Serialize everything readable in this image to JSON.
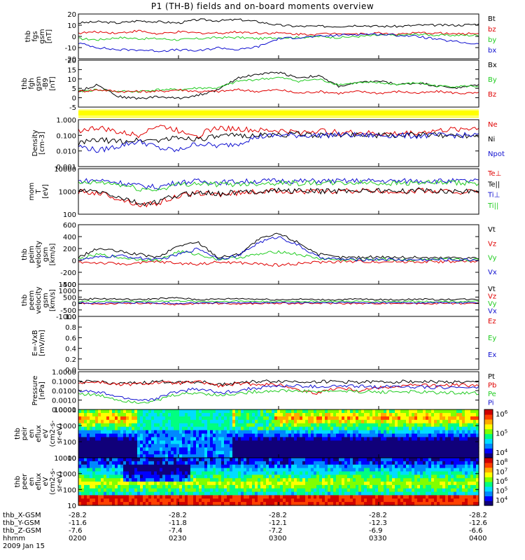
{
  "title": "P1 (TH-B) fields and on-board moments overview",
  "colors": {
    "black": "#000000",
    "red": "#e00000",
    "green": "#22cc22",
    "blue": "#1010d0",
    "yellow": "#ffff00"
  },
  "time_ticks": [
    "0200",
    "0230",
    "0300",
    "0330",
    "0400"
  ],
  "ephemeris": {
    "labels": [
      "thb_X-GSM",
      "thb_Y-GSM",
      "thb_Z-GSM",
      "hhmm",
      "2009 Jan 15"
    ],
    "rows": [
      [
        "-28.2",
        "-28.2",
        "-28.2",
        "-28.2",
        "-28.2"
      ],
      [
        "-11.6",
        "-11.8",
        "-12.1",
        "-12.3",
        "-12.6"
      ],
      [
        "-7.6",
        "-7.4",
        "-7.2",
        "-6.9",
        "-6.6"
      ],
      [
        "0200",
        "0230",
        "0300",
        "0330",
        "0400"
      ]
    ]
  },
  "colorbar_labels": {
    "ion": [
      "10^6",
      "10^5",
      "10^4"
    ],
    "elec": [
      "10^8",
      "10^7",
      "10^6",
      "10^5",
      "10^4"
    ]
  },
  "chart_data": [
    {
      "id": "fgs",
      "type": "line",
      "ylabel": [
        "thb",
        "fgs",
        "gsm",
        "[nT]"
      ],
      "yticks": [
        "20",
        "10",
        "0",
        "-10",
        "-20"
      ],
      "ylim": [
        -20,
        20
      ],
      "legend": [
        {
          "name": "Bt",
          "color": "black"
        },
        {
          "name": "bz",
          "color": "red"
        },
        {
          "name": "by",
          "color": "green"
        },
        {
          "name": "bx",
          "color": "blue"
        }
      ],
      "series": [
        {
          "name": "Bt",
          "color": "black",
          "values": [
            12,
            13,
            12,
            14,
            13,
            12,
            15,
            14,
            15,
            13,
            10,
            9,
            9,
            9,
            10,
            9,
            9,
            10,
            10,
            10,
            11
          ]
        },
        {
          "name": "bz",
          "color": "red",
          "values": [
            3,
            4,
            3,
            5,
            2,
            4,
            3,
            3,
            4,
            3,
            3,
            2,
            2,
            3,
            2,
            3,
            2,
            3,
            3,
            2,
            3
          ]
        },
        {
          "name": "by",
          "color": "green",
          "values": [
            -2,
            -3,
            -1,
            -2,
            -2,
            -3,
            -2,
            -1,
            -1,
            -2,
            -1,
            -1,
            0,
            -1,
            0,
            1,
            1,
            2,
            1,
            1,
            1
          ]
        },
        {
          "name": "bx",
          "color": "blue",
          "values": [
            -6,
            -10,
            -12,
            -12,
            -13,
            -12,
            -13,
            -10,
            -12,
            -9,
            -2,
            -1,
            0,
            1,
            2,
            2,
            1,
            0,
            -3,
            -5,
            -7
          ]
        }
      ]
    },
    {
      "id": "fgh",
      "type": "line",
      "ylabel": [
        "thb",
        "fgh",
        "gsm",
        "-B9",
        "[nT]"
      ],
      "yticks": [
        "20",
        "15",
        "10",
        "5",
        "0",
        "-5"
      ],
      "ylim": [
        -7,
        20
      ],
      "legend": [
        {
          "name": "Bx",
          "color": "black"
        },
        {
          "name": "By",
          "color": "green"
        },
        {
          "name": "Bz",
          "color": "red"
        }
      ],
      "series": [
        {
          "name": "Bx",
          "color": "black",
          "values": [
            2,
            6,
            -1,
            -2,
            -1,
            -2,
            0,
            3,
            10,
            12,
            13,
            10,
            11,
            5,
            7,
            8,
            6,
            7,
            5,
            4,
            6
          ]
        },
        {
          "name": "By",
          "color": "green",
          "values": [
            2,
            3,
            2,
            2,
            3,
            3,
            4,
            4,
            8,
            9,
            10,
            8,
            9,
            6,
            7,
            7,
            6,
            7,
            5,
            5,
            5
          ]
        },
        {
          "name": "Bz",
          "color": "red",
          "values": [
            2,
            3,
            2,
            2,
            2,
            3,
            2,
            2,
            3,
            2,
            3,
            1,
            2,
            1,
            2,
            1,
            2,
            1,
            2,
            1,
            1
          ]
        }
      ]
    },
    {
      "id": "density",
      "type": "line",
      "ylabel": [
        "Density",
        "[cm-3]"
      ],
      "yticks": [
        "1.000",
        "0.100",
        "0.010",
        "0.001"
      ],
      "yscale": "log",
      "ylim": [
        0.001,
        1
      ],
      "legend": [
        {
          "name": "Ne",
          "color": "red"
        },
        {
          "name": "Ni",
          "color": "black"
        },
        {
          "name": "Npot",
          "color": "blue"
        }
      ],
      "series": [
        {
          "name": "Ne",
          "color": "red",
          "values": [
            0.2,
            0.3,
            0.15,
            0.1,
            0.4,
            0.2,
            0.1,
            0.3,
            0.25,
            0.2,
            0.2,
            0.15,
            0.2,
            0.15,
            0.15,
            0.12,
            0.13,
            0.15,
            0.2,
            0.25,
            0.3
          ]
        },
        {
          "name": "Ni",
          "color": "black",
          "values": [
            0.03,
            0.05,
            0.04,
            0.05,
            0.05,
            0.07,
            0.06,
            0.08,
            0.1,
            0.1,
            0.11,
            0.12,
            0.1,
            0.1,
            0.12,
            0.1,
            0.1,
            0.11,
            0.1,
            0.1,
            0.1
          ]
        },
        {
          "name": "Npot",
          "color": "blue",
          "values": [
            0.02,
            0.01,
            0.02,
            0.04,
            0.015,
            0.01,
            0.03,
            0.02,
            0.03,
            0.08,
            0.1,
            0.1,
            0.1,
            0.11,
            0.1,
            0.1,
            0.1,
            0.09,
            0.1,
            0.1,
            0.1
          ]
        }
      ]
    },
    {
      "id": "temp",
      "type": "line",
      "ylabel": [
        "mom",
        "T",
        "[eV]"
      ],
      "yticks": [
        "10000",
        "1000",
        "100"
      ],
      "yscale": "log",
      "ylim": [
        20,
        20000
      ],
      "legend": [
        {
          "name": "Te⊥",
          "color": "red"
        },
        {
          "name": "Te||",
          "color": "black"
        },
        {
          "name": "Ti⊥",
          "color": "blue"
        },
        {
          "name": "Ti||",
          "color": "green"
        }
      ],
      "series": [
        {
          "name": "Te⊥",
          "color": "red",
          "values": [
            600,
            500,
            200,
            80,
            100,
            300,
            500,
            400,
            500,
            600,
            700,
            650,
            600,
            650,
            700,
            650,
            600,
            700,
            650,
            600,
            650
          ]
        },
        {
          "name": "Te||",
          "color": "black",
          "values": [
            700,
            600,
            250,
            90,
            120,
            350,
            550,
            450,
            550,
            650,
            750,
            700,
            650,
            700,
            750,
            700,
            650,
            750,
            700,
            650,
            700
          ]
        },
        {
          "name": "Ti⊥",
          "color": "blue",
          "values": [
            3000,
            3500,
            2500,
            1500,
            1200,
            2500,
            3000,
            2500,
            2800,
            3000,
            3200,
            3000,
            3100,
            3000,
            3200,
            3100,
            3000,
            3200,
            3100,
            3000,
            3100
          ]
        },
        {
          "name": "Ti||",
          "color": "green",
          "values": [
            2000,
            2500,
            1800,
            900,
            800,
            1800,
            2200,
            1800,
            2000,
            2200,
            2400,
            2200,
            2300,
            2200,
            2400,
            2300,
            2200,
            2400,
            2300,
            2200,
            2300
          ]
        }
      ]
    },
    {
      "id": "peim",
      "type": "line",
      "ylabel": [
        "thb",
        "peim",
        "velocity",
        "gsm",
        "[km/s]"
      ],
      "yticks": [
        "600",
        "400",
        "200",
        "0",
        "-200",
        "-400"
      ],
      "ylim": [
        -400,
        600
      ],
      "legend": [
        {
          "name": "Vt",
          "color": "black"
        },
        {
          "name": "Vz",
          "color": "red"
        },
        {
          "name": "Vy",
          "color": "green"
        },
        {
          "name": "Vx",
          "color": "blue"
        }
      ],
      "series": [
        {
          "name": "Vt",
          "color": "black",
          "values": [
            50,
            200,
            150,
            100,
            50,
            250,
            300,
            50,
            100,
            350,
            450,
            300,
            100,
            50,
            50,
            60,
            50,
            50,
            40,
            50,
            40
          ]
        },
        {
          "name": "Vz",
          "color": "red",
          "values": [
            -30,
            -40,
            -60,
            -50,
            -20,
            -50,
            -60,
            -30,
            -40,
            -60,
            -80,
            -50,
            -30,
            -20,
            -20,
            -20,
            -20,
            -20,
            -20,
            -20,
            -20
          ]
        },
        {
          "name": "Vy",
          "color": "green",
          "values": [
            20,
            100,
            50,
            20,
            0,
            150,
            100,
            20,
            50,
            100,
            150,
            100,
            30,
            10,
            10,
            20,
            10,
            10,
            10,
            10,
            10
          ]
        },
        {
          "name": "Vx",
          "color": "blue",
          "values": [
            10,
            50,
            80,
            40,
            10,
            100,
            200,
            30,
            80,
            300,
            400,
            250,
            50,
            20,
            10,
            20,
            10,
            10,
            10,
            10,
            10
          ]
        }
      ]
    },
    {
      "id": "peem",
      "type": "line",
      "ylabel": [
        "thb",
        "peem",
        "velocity",
        "gsm",
        "[km/s]"
      ],
      "yticks": [
        "1500",
        "1000",
        "500",
        "0",
        "-500",
        "-1000"
      ],
      "ylim": [
        -1200,
        1500
      ],
      "legend": [
        {
          "name": "Vt",
          "color": "black"
        },
        {
          "name": "Vz",
          "color": "red"
        },
        {
          "name": "Vy",
          "color": "green"
        },
        {
          "name": "Vx",
          "color": "blue"
        }
      ],
      "series": [
        {
          "name": "Vt",
          "color": "black",
          "values": [
            200,
            300,
            250,
            200,
            300,
            350,
            200,
            250,
            300,
            250,
            200,
            250,
            200,
            200,
            250,
            200,
            200,
            250,
            200,
            250,
            200
          ]
        },
        {
          "name": "Vz",
          "color": "red",
          "values": [
            -100,
            -150,
            -120,
            -100,
            -150,
            -200,
            -100,
            -120,
            -150,
            -120,
            -100,
            -120,
            -100,
            -100,
            -120,
            -100,
            -100,
            -120,
            -100,
            -120,
            -100
          ]
        },
        {
          "name": "Vy",
          "color": "green",
          "values": [
            50,
            80,
            60,
            50,
            80,
            100,
            50,
            60,
            80,
            60,
            50,
            60,
            50,
            50,
            60,
            50,
            50,
            60,
            50,
            60,
            50
          ]
        },
        {
          "name": "Vx",
          "color": "blue",
          "values": [
            -50,
            -80,
            -60,
            -50,
            -80,
            -100,
            -50,
            -60,
            -80,
            -60,
            -50,
            -60,
            -50,
            -50,
            -60,
            -50,
            -50,
            -60,
            -50,
            -60,
            -50
          ]
        }
      ]
    },
    {
      "id": "efield",
      "type": "line",
      "ylabel": [
        "E=-VxB",
        "[mV/m]"
      ],
      "yticks": [
        "1.0",
        "0.8",
        "0.6",
        "0.4",
        "0.2",
        "0.0"
      ],
      "ylim": [
        0,
        1
      ],
      "legend": [
        {
          "name": "Ez",
          "color": "red"
        },
        {
          "name": "Ey",
          "color": "green"
        },
        {
          "name": "Ex",
          "color": "blue"
        }
      ],
      "series": []
    },
    {
      "id": "pressure",
      "type": "line",
      "ylabel": [
        "Pressure",
        "[nPa]"
      ],
      "yticks": [
        "1.0000",
        "0.1000",
        "0.0100",
        "0.0010",
        "0.0001"
      ],
      "yscale": "log",
      "ylim": [
        0.0001,
        1
      ],
      "legend": [
        {
          "name": "Pt",
          "color": "black"
        },
        {
          "name": "Pb",
          "color": "red"
        },
        {
          "name": "Pe",
          "color": "green"
        },
        {
          "name": "Pi",
          "color": "blue"
        }
      ],
      "series": [
        {
          "name": "Pt",
          "color": "black",
          "values": [
            0.08,
            0.09,
            0.05,
            0.06,
            0.09,
            0.08,
            0.09,
            0.04,
            0.07,
            0.09,
            0.1,
            0.09,
            0.09,
            0.09,
            0.08,
            0.08,
            0.09,
            0.09,
            0.08,
            0.08,
            0.07
          ]
        },
        {
          "name": "Pb",
          "color": "red",
          "values": [
            0.07,
            0.08,
            0.04,
            0.05,
            0.07,
            0.06,
            0.08,
            0.03,
            0.05,
            0.05,
            0.04,
            0.01,
            0.005,
            0.02,
            0.01,
            0.02,
            0.03,
            0.04,
            0.03,
            0.04,
            0.03
          ]
        },
        {
          "name": "Pe",
          "color": "green",
          "values": [
            0.005,
            0.003,
            0.001,
            0.0006,
            0.0008,
            0.004,
            0.006,
            0.003,
            0.005,
            0.008,
            0.01,
            0.009,
            0.008,
            0.009,
            0.008,
            0.007,
            0.008,
            0.007,
            0.006,
            0.006,
            0.005
          ]
        },
        {
          "name": "Pi",
          "color": "blue",
          "values": [
            0.01,
            0.006,
            0.002,
            0.001,
            0.0012,
            0.008,
            0.015,
            0.005,
            0.01,
            0.02,
            0.03,
            0.03,
            0.025,
            0.03,
            0.028,
            0.025,
            0.03,
            0.025,
            0.022,
            0.022,
            0.02
          ]
        }
      ]
    },
    {
      "id": "peir",
      "type": "heatmap",
      "ylabel": [
        "thb",
        "peir",
        "en",
        "eflux",
        "eV",
        "(cm2-s-",
        "sr-eV)"
      ],
      "yticks": [
        "10000",
        "1000",
        "100",
        "10"
      ],
      "yscale": "log",
      "ylim": [
        7,
        20000
      ]
    },
    {
      "id": "peer",
      "type": "heatmap",
      "ylabel": [
        "thb",
        "peer",
        "en",
        "eflux",
        "eV",
        "(cm2-s-",
        "sr-eV)"
      ],
      "yticks": [
        "10000",
        "1000",
        "100",
        "10"
      ],
      "yscale": "log",
      "ylim": [
        7,
        20000
      ]
    }
  ]
}
